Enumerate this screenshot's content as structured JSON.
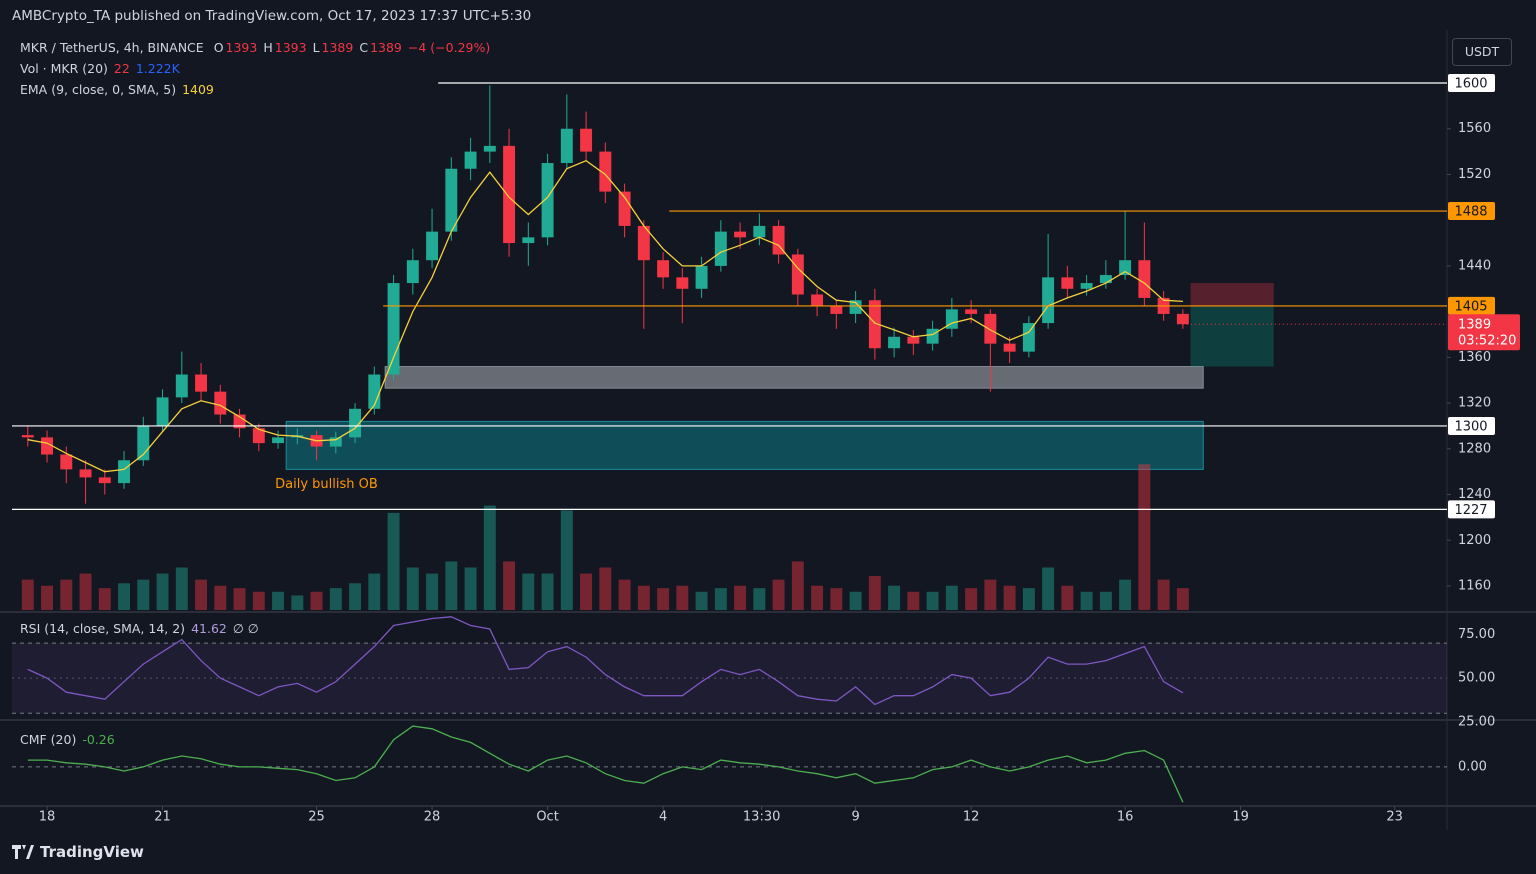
{
  "header": {
    "publisher": "AMBCrypto_TA published on TradingView.com, Oct 17, 2023 17:37 UTC+5:30"
  },
  "footer": {
    "brand": "TradingView"
  },
  "chart_data": {
    "type": "candlestick",
    "title": "MKR / TetherUS, 4h, BINANCE",
    "ohlc_legend": [
      {
        "key": "O",
        "value": "1393"
      },
      {
        "key": "H",
        "value": "1393"
      },
      {
        "key": "L",
        "value": "1389"
      },
      {
        "key": "C",
        "value": "1389"
      }
    ],
    "change": "−4 (−0.29%)",
    "currency": "USDT",
    "colors": {
      "up": "#22ab94",
      "down": "#f23645"
    },
    "x": [
      -0.5,
      0,
      0.5,
      1,
      1.5,
      2,
      2.5,
      3,
      3.5,
      4,
      4.5,
      5,
      5.5,
      6,
      6.5,
      7,
      7.5,
      8,
      8.5,
      9,
      9.5,
      10,
      10.5,
      11,
      11.5,
      12,
      12.5,
      13,
      13.5,
      14,
      14.5,
      15,
      15.5,
      16,
      16.5,
      17,
      17.5,
      18,
      18.5,
      19,
      19.5,
      20,
      20.5,
      21,
      21.5,
      22,
      22.5,
      23,
      23.5,
      24,
      24.5,
      25,
      25.5,
      26,
      26.5,
      27,
      27.5,
      28,
      28.5,
      29,
      29.5
    ],
    "open": [
      1292,
      1290,
      1275,
      1262,
      1255,
      1250,
      1270,
      1300,
      1325,
      1345,
      1330,
      1310,
      1298,
      1285,
      1290,
      1292,
      1282,
      1290,
      1315,
      1345,
      1425,
      1445,
      1470,
      1525,
      1540,
      1545,
      1460,
      1465,
      1530,
      1560,
      1540,
      1505,
      1475,
      1445,
      1430,
      1420,
      1440,
      1470,
      1465,
      1475,
      1450,
      1415,
      1405,
      1398,
      1410,
      1368,
      1378,
      1372,
      1385,
      1402,
      1398,
      1372,
      1365,
      1390,
      1430,
      1420,
      1425,
      1432,
      1445,
      1412,
      1398
    ],
    "high": [
      1300,
      1296,
      1282,
      1270,
      1262,
      1278,
      1308,
      1332,
      1365,
      1355,
      1336,
      1315,
      1302,
      1296,
      1298,
      1296,
      1295,
      1320,
      1352,
      1432,
      1455,
      1490,
      1535,
      1552,
      1598,
      1560,
      1478,
      1538,
      1590,
      1575,
      1548,
      1512,
      1480,
      1452,
      1438,
      1448,
      1480,
      1478,
      1486,
      1480,
      1455,
      1420,
      1410,
      1418,
      1420,
      1386,
      1384,
      1392,
      1412,
      1410,
      1402,
      1378,
      1396,
      1468,
      1440,
      1432,
      1445,
      1488,
      1478,
      1418,
      1402
    ],
    "low": [
      1282,
      1268,
      1250,
      1232,
      1240,
      1245,
      1265,
      1295,
      1320,
      1322,
      1302,
      1290,
      1278,
      1280,
      1284,
      1270,
      1276,
      1285,
      1310,
      1340,
      1415,
      1438,
      1462,
      1515,
      1530,
      1448,
      1440,
      1458,
      1525,
      1532,
      1495,
      1465,
      1385,
      1420,
      1390,
      1412,
      1435,
      1455,
      1458,
      1442,
      1405,
      1396,
      1385,
      1390,
      1358,
      1360,
      1362,
      1366,
      1378,
      1390,
      1330,
      1355,
      1360,
      1385,
      1412,
      1414,
      1420,
      1428,
      1405,
      1392,
      1385
    ],
    "close": [
      1290,
      1275,
      1262,
      1255,
      1250,
      1270,
      1300,
      1325,
      1345,
      1330,
      1310,
      1298,
      1285,
      1290,
      1292,
      1282,
      1290,
      1315,
      1345,
      1425,
      1445,
      1470,
      1525,
      1540,
      1545,
      1460,
      1465,
      1530,
      1560,
      1540,
      1505,
      1475,
      1445,
      1430,
      1420,
      1440,
      1470,
      1465,
      1475,
      1450,
      1415,
      1405,
      1398,
      1410,
      1368,
      1378,
      1372,
      1385,
      1402,
      1398,
      1372,
      1365,
      1390,
      1430,
      1420,
      1425,
      1432,
      1445,
      1412,
      1398,
      1389
    ],
    "xlim": [
      -0.91,
      36.36
    ],
    "xticks": [
      {
        "value": 0,
        "label": "18"
      },
      {
        "value": 3,
        "label": "21"
      },
      {
        "value": 7,
        "label": "25"
      },
      {
        "value": 10,
        "label": "28"
      },
      {
        "value": 13,
        "label": "Oct"
      },
      {
        "value": 16,
        "label": "4"
      },
      {
        "value": 18.56,
        "label": "13:30"
      },
      {
        "value": 21,
        "label": "9"
      },
      {
        "value": 24,
        "label": "12"
      },
      {
        "value": 28,
        "label": "16"
      },
      {
        "value": 31,
        "label": "19"
      },
      {
        "value": 35,
        "label": "23"
      }
    ],
    "ylim": [
      1139,
      1642
    ],
    "yticks": [
      1160,
      1200,
      1240,
      1280,
      1320,
      1360,
      1440,
      1520,
      1560
    ],
    "levels": [
      {
        "value": 1600,
        "color": "#ffffff",
        "start": 10.16
      },
      {
        "value": 1488,
        "color": "#ff9800",
        "start": 16.16
      },
      {
        "value": 1405,
        "color": "#ff9800",
        "start": 8.73
      },
      {
        "value": 1300,
        "color": "#ffffff",
        "start": -0.91
      },
      {
        "value": 1227,
        "color": "#ffffff",
        "start": -0.91
      }
    ],
    "zones": [
      {
        "top": 1352,
        "bottom": 1333,
        "start": 8.78,
        "end": 30.03,
        "color": "#9598a1"
      },
      {
        "top": 1304,
        "bottom": 1262,
        "start": 6.21,
        "end": 30.03,
        "color": "#0e6b78",
        "label": "Daily bullish OB"
      }
    ],
    "position": {
      "stop": 1425,
      "entry": 1405,
      "target": 1352,
      "start": 29.7,
      "end": 31.86
    },
    "last_price": {
      "value": 1389,
      "countdown": "03:52:20"
    },
    "ema": {
      "label": "EMA (9, close, 0, SMA, 5)",
      "color": "#f5d13c",
      "values": [
        1288,
        1285,
        1276,
        1268,
        1260,
        1262,
        1275,
        1295,
        1315,
        1322,
        1318,
        1308,
        1297,
        1292,
        1291,
        1287,
        1288,
        1298,
        1318,
        1360,
        1400,
        1430,
        1470,
        1500,
        1522,
        1500,
        1485,
        1500,
        1525,
        1532,
        1520,
        1500,
        1475,
        1455,
        1440,
        1440,
        1452,
        1458,
        1465,
        1458,
        1438,
        1422,
        1410,
        1408,
        1390,
        1384,
        1378,
        1380,
        1390,
        1394,
        1384,
        1375,
        1382,
        1405,
        1412,
        1418,
        1425,
        1435,
        1425,
        1410,
        1409
      ]
    },
    "volume": {
      "label": "Vol · MKR (20)",
      "last": "22",
      "ma": "1.222K",
      "ylim": [
        0,
        14000
      ],
      "values": [
        2500,
        2000,
        2500,
        3000,
        1800,
        2200,
        2500,
        3000,
        3500,
        2500,
        2000,
        1800,
        1500,
        1500,
        1200,
        1500,
        1800,
        2200,
        3000,
        8000,
        3500,
        3000,
        4000,
        3500,
        8600,
        4000,
        3000,
        3000,
        8200,
        3000,
        3500,
        2500,
        2000,
        1800,
        2000,
        1500,
        1800,
        2000,
        1800,
        2500,
        4000,
        2000,
        1800,
        1500,
        2800,
        2000,
        1500,
        1500,
        2000,
        1800,
        2500,
        2000,
        1800,
        3500,
        2000,
        1500,
        1500,
        2500,
        12000,
        2500,
        1800
      ]
    },
    "rsi": {
      "label": "RSI (14, close, SMA, 14, 2)",
      "extra": "∅ ∅",
      "color": "#7e57c2",
      "ylim": [
        25,
        86
      ],
      "bands": [
        70,
        30
      ],
      "yticks": [
        {
          "value": 75,
          "label": "75.00"
        },
        {
          "value": 50,
          "label": "50.00"
        },
        {
          "value": 25,
          "label": "25.00"
        }
      ],
      "values": [
        55,
        50,
        42,
        40,
        38,
        48,
        58,
        65,
        72,
        60,
        50,
        45,
        40,
        45,
        47,
        42,
        48,
        58,
        68,
        80,
        82,
        84,
        85,
        80,
        78,
        55,
        56,
        65,
        68,
        62,
        52,
        45,
        40,
        40,
        40,
        48,
        55,
        52,
        55,
        48,
        40,
        38,
        37,
        45,
        35,
        40,
        40,
        45,
        52,
        50,
        40,
        42,
        50,
        62,
        58,
        58,
        60,
        64,
        68,
        48,
        41.62
      ]
    },
    "cmf": {
      "label": "CMF (20)",
      "color": "#4caf50",
      "ylim": [
        -0.28,
        0.33
      ],
      "yticks": [
        {
          "value": 0,
          "label": "0.00"
        }
      ],
      "values": [
        0.05,
        0.05,
        0.03,
        0.02,
        0,
        -0.03,
        0,
        0.05,
        0.08,
        0.06,
        0.02,
        0,
        0,
        -0.01,
        -0.02,
        -0.05,
        -0.1,
        -0.08,
        0,
        0.2,
        0.3,
        0.28,
        0.22,
        0.18,
        0.1,
        0.02,
        -0.03,
        0.05,
        0.08,
        0.03,
        -0.05,
        -0.1,
        -0.12,
        -0.05,
        0,
        -0.02,
        0.05,
        0.03,
        0.02,
        0,
        -0.03,
        -0.05,
        -0.08,
        -0.05,
        -0.12,
        -0.1,
        -0.08,
        -0.02,
        0,
        0.05,
        0,
        -0.03,
        0,
        0.05,
        0.08,
        0.03,
        0.05,
        0.1,
        0.12,
        0.05,
        -0.26
      ]
    }
  }
}
